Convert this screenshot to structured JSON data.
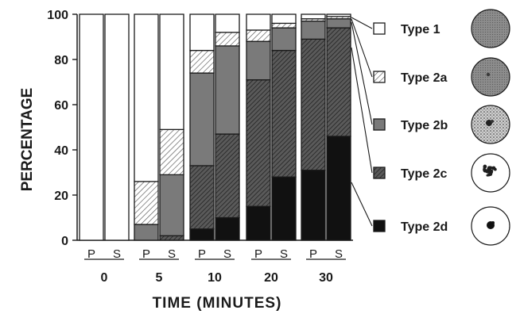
{
  "chart_data": {
    "type": "bar",
    "stacked": true,
    "xlabel": "TIME (MINUTES)",
    "ylabel": "PERCENTAGE",
    "ylim": [
      0,
      100
    ],
    "yticks": [
      "0",
      "20",
      "40",
      "60",
      "80",
      "100"
    ],
    "groups": [
      "0",
      "5",
      "10",
      "20",
      "30"
    ],
    "bar_labels": [
      "P",
      "S"
    ],
    "categories": [
      "P 0",
      "S 0",
      "P 5",
      "S 5",
      "P 10",
      "S 10",
      "P 20",
      "S 20",
      "P 30",
      "S 30"
    ],
    "series": [
      {
        "name": "Type 2d",
        "values": [
          0,
          0,
          0,
          0,
          5,
          10,
          15,
          28,
          31,
          46
        ]
      },
      {
        "name": "Type 2c",
        "values": [
          0,
          0,
          0,
          2,
          28,
          37,
          56,
          56,
          58,
          48
        ]
      },
      {
        "name": "Type 2b",
        "values": [
          0,
          0,
          7,
          27,
          41,
          39,
          17,
          10,
          8,
          4
        ]
      },
      {
        "name": "Type 2a",
        "values": [
          0,
          0,
          19,
          20,
          10,
          6,
          5,
          2,
          1,
          1
        ]
      },
      {
        "name": "Type 1",
        "values": [
          100,
          100,
          74,
          51,
          16,
          8,
          7,
          4,
          2,
          1
        ]
      }
    ],
    "legend_placement": "right",
    "legend_order": [
      "Type 1",
      "Type 2a",
      "Type 2b",
      "Type 2c",
      "Type 2d"
    ],
    "grid": false
  },
  "colors": {
    "Type 1": "#ffffff",
    "Type 2a": "hatch-light",
    "Type 2b": "#7a7a7a",
    "Type 2c": "hatch-dark",
    "Type 2d": "#111111",
    "ink": "#1a1a1a"
  },
  "icons": [
    "cell-type-1-icon",
    "cell-type-2a-icon",
    "cell-type-2b-icon",
    "cell-type-2c-icon",
    "cell-type-2d-icon"
  ]
}
